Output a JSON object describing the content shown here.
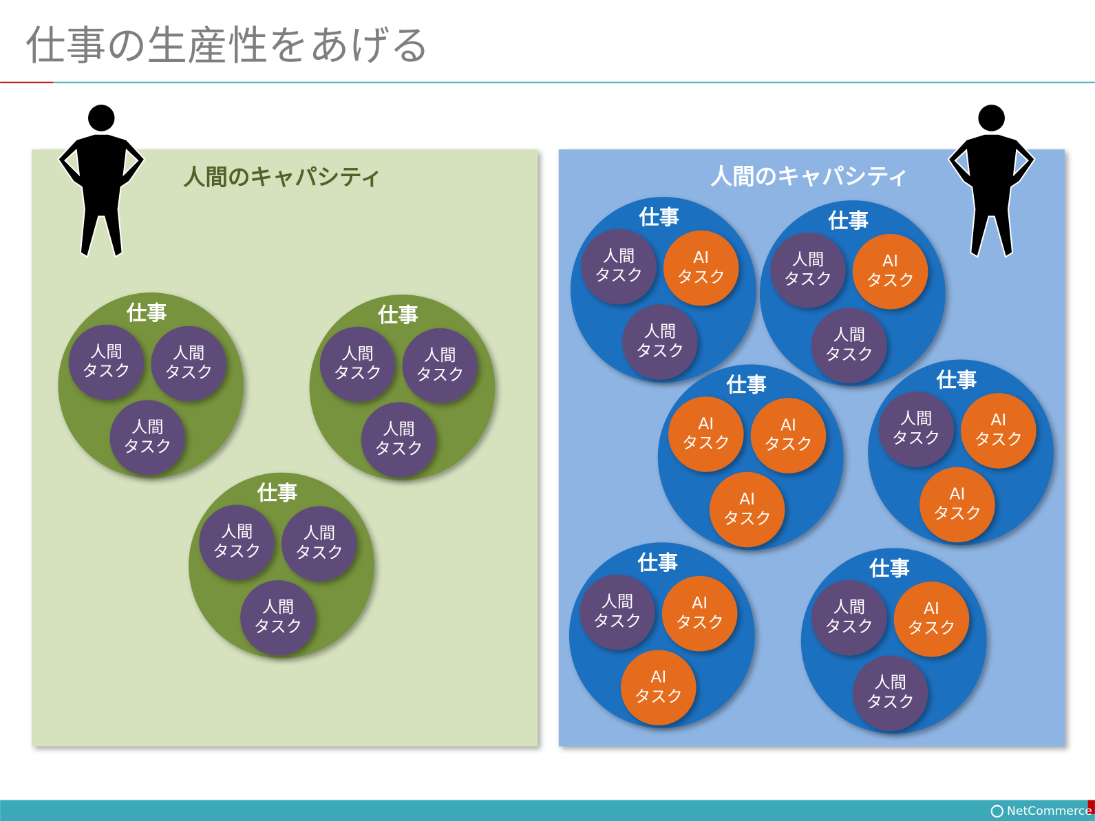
{
  "title": "仕事の生産性をあげる",
  "panels": [
    {
      "label": "人間のキャパシティ",
      "color": "#d6e2be",
      "label_color": "#4f6228",
      "job_color": "#77933c",
      "jobs": [
        {
          "label": "仕事",
          "tasks": [
            {
              "lines": [
                "人間",
                "タスク"
              ],
              "color": "#5f4b7a"
            },
            {
              "lines": [
                "人間",
                "タスク"
              ],
              "color": "#5f4b7a"
            },
            {
              "lines": [
                "人間",
                "タスク"
              ],
              "color": "#5f4b7a"
            }
          ]
        },
        {
          "label": "仕事",
          "tasks": [
            {
              "lines": [
                "人間",
                "タスク"
              ],
              "color": "#5f4b7a"
            },
            {
              "lines": [
                "人間",
                "タスク"
              ],
              "color": "#5f4b7a"
            },
            {
              "lines": [
                "人間",
                "タスク"
              ],
              "color": "#5f4b7a"
            }
          ]
        },
        {
          "label": "仕事",
          "tasks": [
            {
              "lines": [
                "人間",
                "タスク"
              ],
              "color": "#5f4b7a"
            },
            {
              "lines": [
                "人間",
                "タスク"
              ],
              "color": "#5f4b7a"
            },
            {
              "lines": [
                "人間",
                "タスク"
              ],
              "color": "#5f4b7a"
            }
          ]
        }
      ]
    },
    {
      "label": "人間のキャパシティ",
      "color": "#8eb4e3",
      "label_color": "#ffffff",
      "job_color": "#1a70c0",
      "jobs": [
        {
          "label": "仕事",
          "tasks": [
            {
              "lines": [
                "人間",
                "タスク"
              ],
              "color": "#5f4b7a"
            },
            {
              "lines": [
                "AI",
                "タスク"
              ],
              "color": "#e46c1c"
            },
            {
              "lines": [
                "人間",
                "タスク"
              ],
              "color": "#5f4b7a"
            }
          ]
        },
        {
          "label": "仕事",
          "tasks": [
            {
              "lines": [
                "人間",
                "タスク"
              ],
              "color": "#5f4b7a"
            },
            {
              "lines": [
                "AI",
                "タスク"
              ],
              "color": "#e46c1c"
            },
            {
              "lines": [
                "人間",
                "タスク"
              ],
              "color": "#5f4b7a"
            }
          ]
        },
        {
          "label": "仕事",
          "tasks": [
            {
              "lines": [
                "AI",
                "タスク"
              ],
              "color": "#e46c1c"
            },
            {
              "lines": [
                "AI",
                "タスク"
              ],
              "color": "#e46c1c"
            },
            {
              "lines": [
                "AI",
                "タスク"
              ],
              "color": "#e46c1c"
            }
          ]
        },
        {
          "label": "仕事",
          "tasks": [
            {
              "lines": [
                "人間",
                "タスク"
              ],
              "color": "#5f4b7a"
            },
            {
              "lines": [
                "AI",
                "タスク"
              ],
              "color": "#e46c1c"
            },
            {
              "lines": [
                "AI",
                "タスク"
              ],
              "color": "#e46c1c"
            }
          ]
        },
        {
          "label": "仕事",
          "tasks": [
            {
              "lines": [
                "人間",
                "タスク"
              ],
              "color": "#5f4b7a"
            },
            {
              "lines": [
                "AI",
                "タスク"
              ],
              "color": "#e46c1c"
            },
            {
              "lines": [
                "AI",
                "タスク"
              ],
              "color": "#e46c1c"
            }
          ]
        },
        {
          "label": "仕事",
          "tasks": [
            {
              "lines": [
                "人間",
                "タスク"
              ],
              "color": "#5f4b7a"
            },
            {
              "lines": [
                "AI",
                "タスク"
              ],
              "color": "#e46c1c"
            },
            {
              "lines": [
                "人間",
                "タスク"
              ],
              "color": "#5f4b7a"
            }
          ]
        }
      ]
    }
  ],
  "footer": {
    "logo": "NetCommerce"
  }
}
